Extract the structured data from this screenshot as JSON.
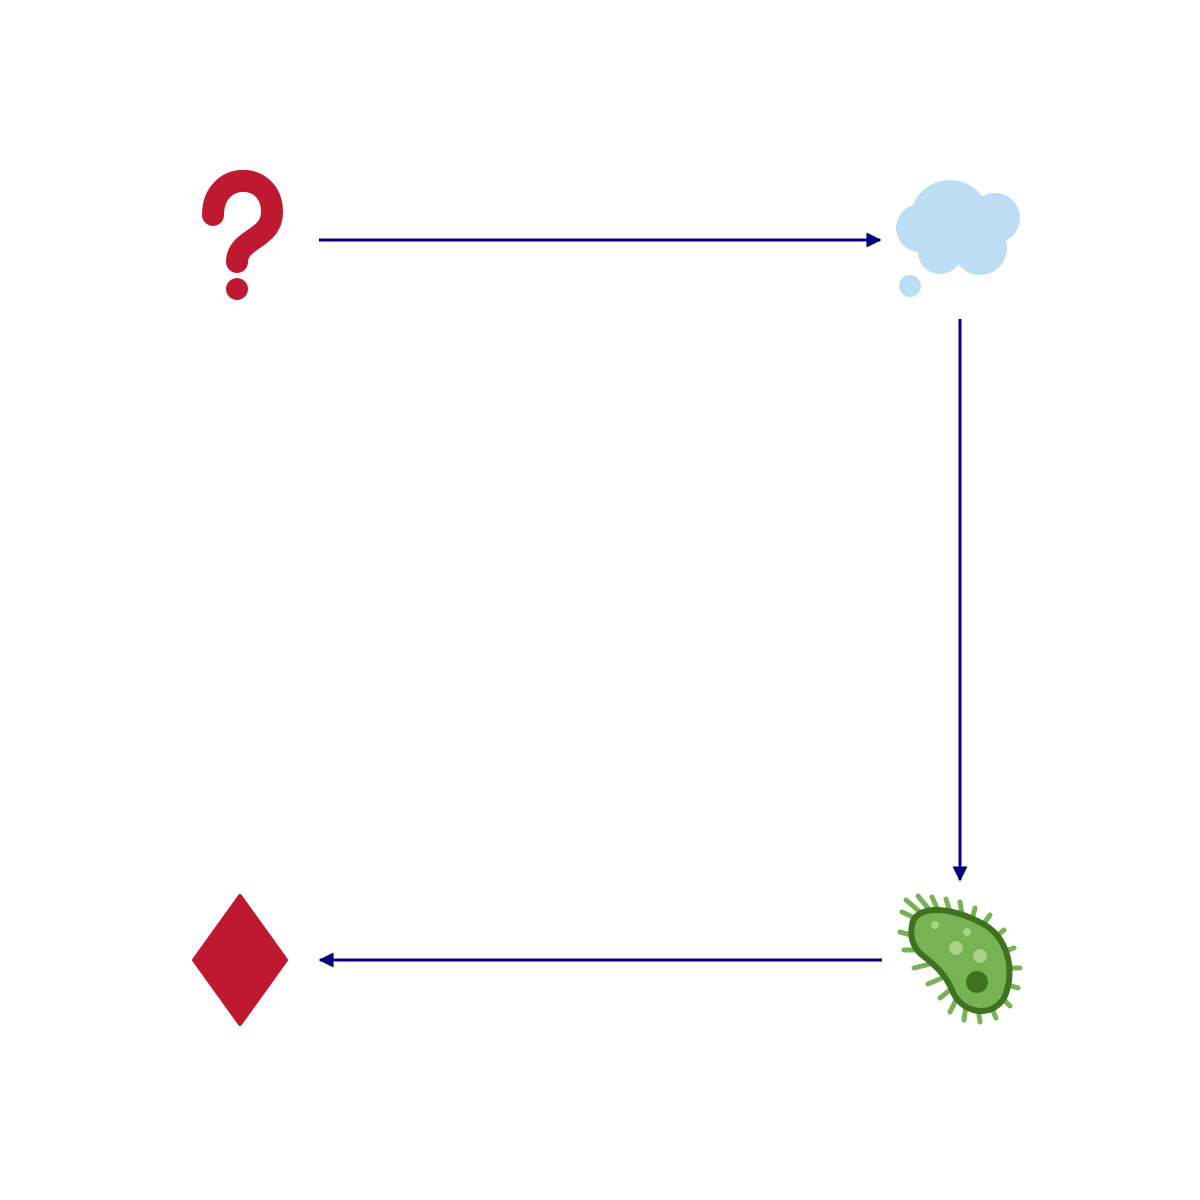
{
  "diagram": {
    "nodes": [
      {
        "id": "question",
        "icon": "question-mark-icon",
        "color": "#BE1931"
      },
      {
        "id": "thought",
        "icon": "thought-balloon-icon",
        "color": "#BDDDF4"
      },
      {
        "id": "microbe",
        "icon": "microbe-icon",
        "color": "#77B255"
      },
      {
        "id": "diamond",
        "icon": "diamond-suit-icon",
        "color": "#BE1931"
      }
    ],
    "edges": [
      {
        "from": "question",
        "to": "thought"
      },
      {
        "from": "thought",
        "to": "microbe"
      },
      {
        "from": "microbe",
        "to": "diamond"
      }
    ],
    "colors": {
      "arrow": "#000080",
      "microbe_outline": "#3E721D",
      "microbe_spots": "#A6D388",
      "background": "#FFFFFF"
    }
  }
}
